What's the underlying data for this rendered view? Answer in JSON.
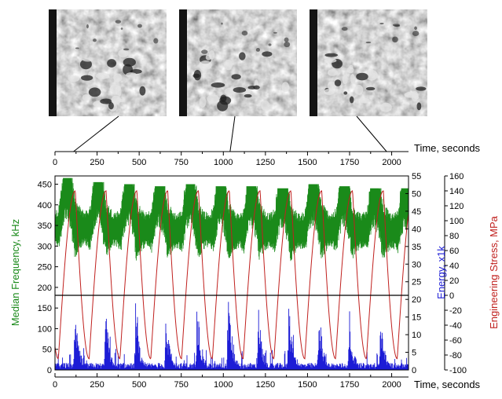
{
  "chart_data": {
    "type": "line",
    "x_top_label": "Time, seconds",
    "x_bottom_label": "Time, seconds",
    "x_ticks": [
      0,
      250,
      500,
      750,
      1000,
      1250,
      1500,
      1750,
      2000
    ],
    "xlim": [
      0,
      2100
    ],
    "y_left": {
      "label": "Median Frequency, kHz",
      "ticks": [
        0,
        50,
        100,
        150,
        200,
        250,
        300,
        350,
        400,
        450
      ],
      "ylim": [
        0,
        470
      ],
      "color": "#1a8a1a"
    },
    "y_energy": {
      "label": "Energy, x1k",
      "ticks": [
        0,
        5,
        10,
        15,
        20,
        25,
        30,
        35,
        40,
        45,
        50,
        55
      ],
      "ylim": [
        0,
        55
      ],
      "color": "#1c1cd6"
    },
    "y_stress": {
      "label": "Engineering Stress, MPa",
      "ticks": [
        -100,
        -80,
        -60,
        -40,
        -20,
        0,
        20,
        40,
        60,
        80,
        100,
        120,
        140,
        160
      ],
      "ylim": [
        -100,
        160
      ],
      "color": "#c0201e"
    },
    "reference_line_stress": 0,
    "micrograph_times": [
      110,
      1040,
      1970
    ],
    "cycles": {
      "count": 11,
      "start": 20,
      "period": 183
    },
    "series": [
      {
        "axis": "y_left",
        "color": "#1a8a1a",
        "cycle_peaks_x": [
          90,
          275,
          460,
          640,
          825,
          1010,
          1195,
          1380,
          1560,
          1745,
          1930
        ],
        "band_min_y": [
          250,
          250,
          260,
          250,
          250,
          260,
          260,
          260,
          250,
          250,
          250
        ],
        "band_max_y": [
          465,
          455,
          450,
          445,
          450,
          445,
          445,
          440,
          450,
          445,
          440
        ]
      },
      {
        "axis": "y_stress",
        "color": "#c0201e",
        "max": 140,
        "min": -85
      },
      {
        "axis": "y_energy",
        "color": "#1c1cd6",
        "spike_x": [
          120,
          300,
          480,
          660,
          845,
          1030,
          1210,
          1390,
          1570,
          1750,
          1935
        ],
        "spike_y": [
          22,
          20,
          19,
          18,
          22,
          24,
          19,
          21,
          19,
          18,
          18
        ]
      }
    ]
  },
  "micrographs": [
    {
      "name": "micrograph-1"
    },
    {
      "name": "micrograph-2"
    },
    {
      "name": "micrograph-3"
    }
  ]
}
